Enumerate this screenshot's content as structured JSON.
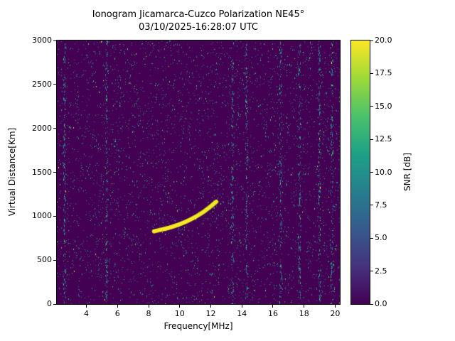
{
  "chart_data": {
    "type": "heatmap",
    "title": "Ionogram Jicamarca-Cuzco Polarization NE45°",
    "subtitle": "03/10/2025-16:28:07 UTC",
    "xlabel": "Frequency[MHz]",
    "ylabel": "Virtual Distance[Km]",
    "xlim": [
      2.1,
      20.3
    ],
    "ylim": [
      0,
      3000
    ],
    "grid": false,
    "legend": "none",
    "xticks": {
      "values": [
        4,
        6,
        8,
        10,
        12,
        14,
        16,
        18,
        20
      ],
      "labels": [
        "4",
        "6",
        "8",
        "10",
        "12",
        "14",
        "16",
        "18",
        "20"
      ]
    },
    "yticks": {
      "values": [
        0,
        500,
        1000,
        1500,
        2000,
        2500,
        3000
      ],
      "labels": [
        "0",
        "500",
        "1000",
        "1500",
        "2000",
        "2500",
        "3000"
      ]
    },
    "colorbar": {
      "label": "SNR [dB]",
      "min": 0,
      "max": 20,
      "position": "right",
      "colormap": "viridis",
      "ticks": {
        "values": [
          0,
          2.5,
          5,
          7.5,
          10,
          12.5,
          15,
          17.5,
          20
        ],
        "labels": [
          "0.0",
          "2.5",
          "5.0",
          "7.5",
          "10.0",
          "12.5",
          "15.0",
          "17.5",
          "20.0"
        ]
      },
      "gradient": [
        {
          "at": 0.0,
          "color": "#440154"
        },
        {
          "at": 0.14,
          "color": "#46327e"
        },
        {
          "at": 0.29,
          "color": "#365c8d"
        },
        {
          "at": 0.43,
          "color": "#277f8e"
        },
        {
          "at": 0.57,
          "color": "#1fa187"
        },
        {
          "at": 0.71,
          "color": "#4ac16d"
        },
        {
          "at": 0.86,
          "color": "#a0da39"
        },
        {
          "at": 1.0,
          "color": "#fde725"
        }
      ]
    },
    "colors": {
      "plot_background": "#440154",
      "trace": "#fde725",
      "trace_edge": "#d8e219",
      "axis": "#000000",
      "figure_background": "#ffffff"
    },
    "noise": {
      "description": "sparse low-SNR speckle noise over background",
      "density": 0.025,
      "palette": [
        {
          "color": "#26828e",
          "weight": 0.26
        },
        {
          "color": "#21918c",
          "weight": 0.18
        },
        {
          "color": "#2a788e",
          "weight": 0.14
        },
        {
          "color": "#31688e",
          "weight": 0.1
        },
        {
          "color": "#355f8d",
          "weight": 0.06
        },
        {
          "color": "#35b779",
          "weight": 0.1
        },
        {
          "color": "#43bf71",
          "weight": 0.05
        },
        {
          "color": "#5ec962",
          "weight": 0.04
        },
        {
          "color": "#443983",
          "weight": 0.05
        },
        {
          "color": "#addc30",
          "weight": 0.015
        },
        {
          "color": "#fde725",
          "weight": 0.005
        }
      ],
      "rfi_stripes_mhz": [
        2.6,
        5.3,
        13.4,
        14.3,
        16.5,
        17.7,
        19.0,
        19.8
      ]
    },
    "echo_trace": {
      "snr_db": 20,
      "points": [
        [
          8.35,
          828
        ],
        [
          8.6,
          838
        ],
        [
          8.9,
          850
        ],
        [
          9.2,
          863
        ],
        [
          9.5,
          878
        ],
        [
          9.8,
          896
        ],
        [
          10.1,
          916
        ],
        [
          10.4,
          938
        ],
        [
          10.7,
          963
        ],
        [
          11.0,
          991
        ],
        [
          11.3,
          1023
        ],
        [
          11.6,
          1058
        ],
        [
          11.9,
          1098
        ],
        [
          12.15,
          1135
        ],
        [
          12.35,
          1165
        ]
      ]
    }
  }
}
